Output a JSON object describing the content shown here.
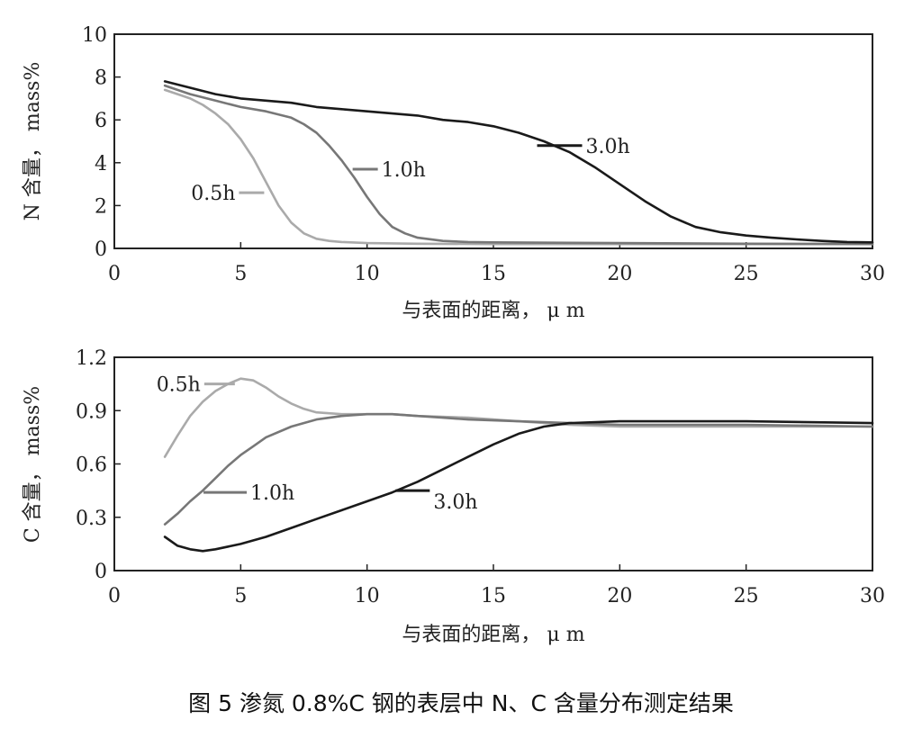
{
  "caption": "图 5  渗氮 0.8%C 钢的表层中 N、C 含量分布测定结果",
  "colors": {
    "h05": "#aaaaaa",
    "h10": "#777777",
    "h30": "#1a1a1a",
    "axis": "#222222"
  },
  "chart_data": [
    {
      "type": "line",
      "title": "",
      "xlabel": "与表面的距离， μ m",
      "ylabel": "N 含量， mass%",
      "xlim": [
        0,
        30
      ],
      "ylim": [
        0,
        10
      ],
      "xticks": [
        "0",
        "5",
        "10",
        "15",
        "20",
        "25",
        "30"
      ],
      "yticks": [
        "0",
        "2",
        "4",
        "6",
        "8",
        "10"
      ],
      "series": [
        {
          "name": "0.5h",
          "color": "#aaaaaa",
          "x": [
            2.0,
            2.5,
            3.0,
            3.5,
            4.0,
            4.5,
            5.0,
            5.5,
            6.0,
            6.5,
            7.0,
            7.5,
            8.0,
            8.5,
            9.0,
            10.0,
            12.0,
            15.0,
            20.0,
            25.0,
            30.0
          ],
          "y": [
            7.4,
            7.2,
            7.0,
            6.7,
            6.3,
            5.8,
            5.1,
            4.2,
            3.1,
            2.0,
            1.2,
            0.7,
            0.45,
            0.35,
            0.3,
            0.25,
            0.22,
            0.2,
            0.2,
            0.2,
            0.2
          ]
        },
        {
          "name": "1.0h",
          "color": "#777777",
          "x": [
            2.0,
            3.0,
            4.0,
            5.0,
            6.0,
            7.0,
            7.5,
            8.0,
            8.5,
            9.0,
            9.5,
            10.0,
            10.5,
            11.0,
            11.5,
            12.0,
            13.0,
            14.0,
            15.0,
            20.0,
            25.0,
            30.0
          ],
          "y": [
            7.6,
            7.2,
            6.9,
            6.6,
            6.4,
            6.1,
            5.8,
            5.4,
            4.8,
            4.1,
            3.3,
            2.4,
            1.6,
            1.0,
            0.7,
            0.5,
            0.35,
            0.3,
            0.28,
            0.25,
            0.22,
            0.2
          ]
        },
        {
          "name": "3.0h",
          "color": "#1a1a1a",
          "x": [
            2.0,
            3.0,
            4.0,
            5.0,
            6.0,
            7.0,
            8.0,
            9.0,
            10.0,
            11.0,
            12.0,
            13.0,
            14.0,
            15.0,
            16.0,
            17.0,
            18.0,
            19.0,
            20.0,
            21.0,
            22.0,
            23.0,
            24.0,
            25.0,
            26.0,
            27.0,
            28.0,
            29.0,
            30.0
          ],
          "y": [
            7.8,
            7.5,
            7.2,
            7.0,
            6.9,
            6.8,
            6.6,
            6.5,
            6.4,
            6.3,
            6.2,
            6.0,
            5.9,
            5.7,
            5.4,
            5.0,
            4.5,
            3.8,
            3.0,
            2.2,
            1.5,
            1.0,
            0.75,
            0.6,
            0.5,
            0.42,
            0.35,
            0.3,
            0.28
          ]
        }
      ],
      "annotations": [
        {
          "text": "0.5h",
          "x": 6.0,
          "y": 2.6
        },
        {
          "text": "1.0h",
          "x": 9.5,
          "y": 3.7
        },
        {
          "text": "3.0h",
          "x": 16.8,
          "y": 4.8
        }
      ]
    },
    {
      "type": "line",
      "title": "",
      "xlabel": "与表面的距离， μ m",
      "ylabel": "C 含量， mass%",
      "xlim": [
        0,
        30
      ],
      "ylim": [
        0,
        1.2
      ],
      "xticks": [
        "0",
        "5",
        "10",
        "15",
        "20",
        "25",
        "30"
      ],
      "yticks": [
        "0",
        "0.3",
        "0.6",
        "0.9",
        "1.2"
      ],
      "series": [
        {
          "name": "0.5h",
          "color": "#aaaaaa",
          "x": [
            2.0,
            2.5,
            3.0,
            3.5,
            4.0,
            4.5,
            5.0,
            5.5,
            6.0,
            6.5,
            7.0,
            7.5,
            8.0,
            9.0,
            10.0,
            11.0,
            12.0,
            14.0,
            16.0,
            18.0,
            20.0,
            25.0,
            30.0
          ],
          "y": [
            0.64,
            0.76,
            0.87,
            0.95,
            1.01,
            1.05,
            1.08,
            1.07,
            1.03,
            0.98,
            0.94,
            0.91,
            0.89,
            0.88,
            0.88,
            0.88,
            0.87,
            0.86,
            0.84,
            0.82,
            0.81,
            0.81,
            0.81
          ]
        },
        {
          "name": "1.0h",
          "color": "#777777",
          "x": [
            2.0,
            2.5,
            3.0,
            3.5,
            4.0,
            4.5,
            5.0,
            5.5,
            6.0,
            7.0,
            8.0,
            9.0,
            10.0,
            11.0,
            12.0,
            13.0,
            14.0,
            16.0,
            18.0,
            20.0,
            25.0,
            30.0
          ],
          "y": [
            0.26,
            0.32,
            0.39,
            0.45,
            0.52,
            0.59,
            0.65,
            0.7,
            0.75,
            0.81,
            0.85,
            0.87,
            0.88,
            0.88,
            0.87,
            0.86,
            0.85,
            0.84,
            0.83,
            0.82,
            0.82,
            0.81
          ]
        },
        {
          "name": "3.0h",
          "color": "#1a1a1a",
          "x": [
            2.0,
            2.5,
            3.0,
            3.5,
            4.0,
            5.0,
            6.0,
            7.0,
            8.0,
            9.0,
            10.0,
            11.0,
            12.0,
            13.0,
            14.0,
            15.0,
            16.0,
            17.0,
            18.0,
            20.0,
            25.0,
            30.0
          ],
          "y": [
            0.19,
            0.14,
            0.12,
            0.11,
            0.12,
            0.15,
            0.19,
            0.24,
            0.29,
            0.34,
            0.39,
            0.44,
            0.5,
            0.57,
            0.64,
            0.71,
            0.77,
            0.81,
            0.83,
            0.84,
            0.84,
            0.83
          ]
        }
      ],
      "annotations": [
        {
          "text": "0.5h",
          "x": 3.7,
          "y": 1.05
        },
        {
          "text": "1.0h",
          "x": 3.6,
          "y": 0.44
        },
        {
          "text": "3.0h",
          "x": 11.2,
          "y": 0.45
        }
      ]
    }
  ]
}
